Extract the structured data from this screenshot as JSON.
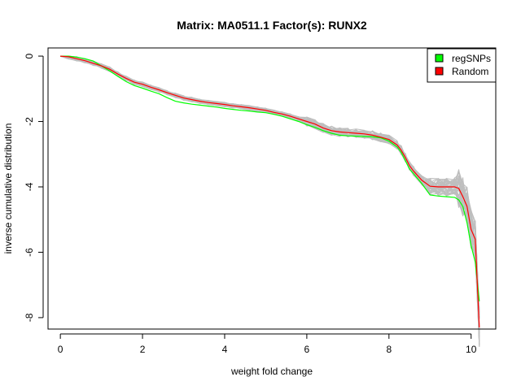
{
  "chart_data": {
    "type": "line",
    "title": "Matrix: MA0511.1 Factor(s): RUNX2",
    "xlabel": "weight fold change",
    "ylabel": "inverse cumulative distribution",
    "xlim": [
      -0.3,
      10.6
    ],
    "ylim": [
      -8.35,
      0.25
    ],
    "x_ticks": [
      0,
      2,
      4,
      6,
      8,
      10
    ],
    "x_tick_labels": [
      "0",
      "2",
      "4",
      "6",
      "8",
      "10"
    ],
    "y_ticks": [
      0,
      -2,
      -4,
      -6,
      -8
    ],
    "y_tick_labels": [
      "0",
      "-2",
      "-4",
      "-6",
      "-8"
    ],
    "legend": {
      "position": "top-right",
      "entries": [
        "regSNPs",
        "Random"
      ]
    },
    "colors": {
      "regSNPs": "#00ff00",
      "Random": "#ff0000",
      "background_samples": "#bebebe"
    },
    "series": [
      {
        "name": "regSNPs",
        "color": "#00ff00",
        "x": [
          0,
          0.2,
          0.4,
          0.6,
          0.8,
          1.0,
          1.2,
          1.4,
          1.6,
          1.8,
          2.0,
          2.2,
          2.4,
          2.6,
          2.8,
          3.0,
          3.2,
          3.4,
          3.6,
          3.8,
          4.0,
          4.2,
          4.4,
          4.6,
          4.8,
          5.0,
          5.2,
          5.4,
          5.6,
          5.8,
          6.0,
          6.2,
          6.4,
          6.6,
          6.8,
          7.0,
          7.2,
          7.4,
          7.6,
          7.8,
          8.0,
          8.2,
          8.3,
          8.4,
          8.5,
          8.6,
          8.8,
          9.0,
          9.2,
          9.4,
          9.6,
          9.7,
          9.8,
          9.9,
          10.0,
          10.1,
          10.2
        ],
        "y": [
          0,
          0,
          -0.03,
          -0.08,
          -0.15,
          -0.3,
          -0.45,
          -0.62,
          -0.78,
          -0.9,
          -0.98,
          -1.07,
          -1.15,
          -1.27,
          -1.38,
          -1.43,
          -1.47,
          -1.5,
          -1.53,
          -1.56,
          -1.6,
          -1.63,
          -1.66,
          -1.68,
          -1.71,
          -1.73,
          -1.78,
          -1.84,
          -1.92,
          -2.0,
          -2.1,
          -2.18,
          -2.28,
          -2.36,
          -2.42,
          -2.44,
          -2.45,
          -2.46,
          -2.47,
          -2.5,
          -2.6,
          -2.78,
          -2.95,
          -3.2,
          -3.45,
          -3.6,
          -3.9,
          -4.25,
          -4.28,
          -4.3,
          -4.32,
          -4.4,
          -4.6,
          -5.1,
          -5.8,
          -6.3,
          -7.5
        ]
      },
      {
        "name": "Random",
        "color": "#ff0000",
        "x": [
          0,
          0.2,
          0.4,
          0.6,
          0.8,
          1.0,
          1.2,
          1.4,
          1.6,
          1.8,
          2.0,
          2.2,
          2.4,
          2.6,
          2.8,
          3.0,
          3.2,
          3.4,
          3.6,
          3.8,
          4.0,
          4.2,
          4.4,
          4.6,
          4.8,
          5.0,
          5.2,
          5.4,
          5.6,
          5.8,
          6.0,
          6.2,
          6.4,
          6.6,
          6.8,
          7.0,
          7.2,
          7.4,
          7.6,
          7.8,
          8.0,
          8.2,
          8.3,
          8.4,
          8.5,
          8.6,
          8.8,
          9.0,
          9.2,
          9.4,
          9.6,
          9.7,
          9.8,
          9.9,
          10.0,
          10.1,
          10.2
        ],
        "y": [
          0,
          -0.02,
          -0.08,
          -0.14,
          -0.22,
          -0.3,
          -0.4,
          -0.55,
          -0.68,
          -0.8,
          -0.86,
          -0.95,
          -1.03,
          -1.12,
          -1.2,
          -1.28,
          -1.33,
          -1.38,
          -1.42,
          -1.45,
          -1.48,
          -1.52,
          -1.55,
          -1.58,
          -1.62,
          -1.66,
          -1.72,
          -1.77,
          -1.84,
          -1.92,
          -2.0,
          -2.08,
          -2.2,
          -2.28,
          -2.32,
          -2.34,
          -2.36,
          -2.38,
          -2.42,
          -2.48,
          -2.55,
          -2.72,
          -2.88,
          -3.1,
          -3.35,
          -3.52,
          -3.8,
          -3.98,
          -4.0,
          -4.0,
          -4.0,
          -4.05,
          -4.3,
          -4.6,
          -5.3,
          -5.6,
          -8.3
        ]
      }
    ]
  }
}
